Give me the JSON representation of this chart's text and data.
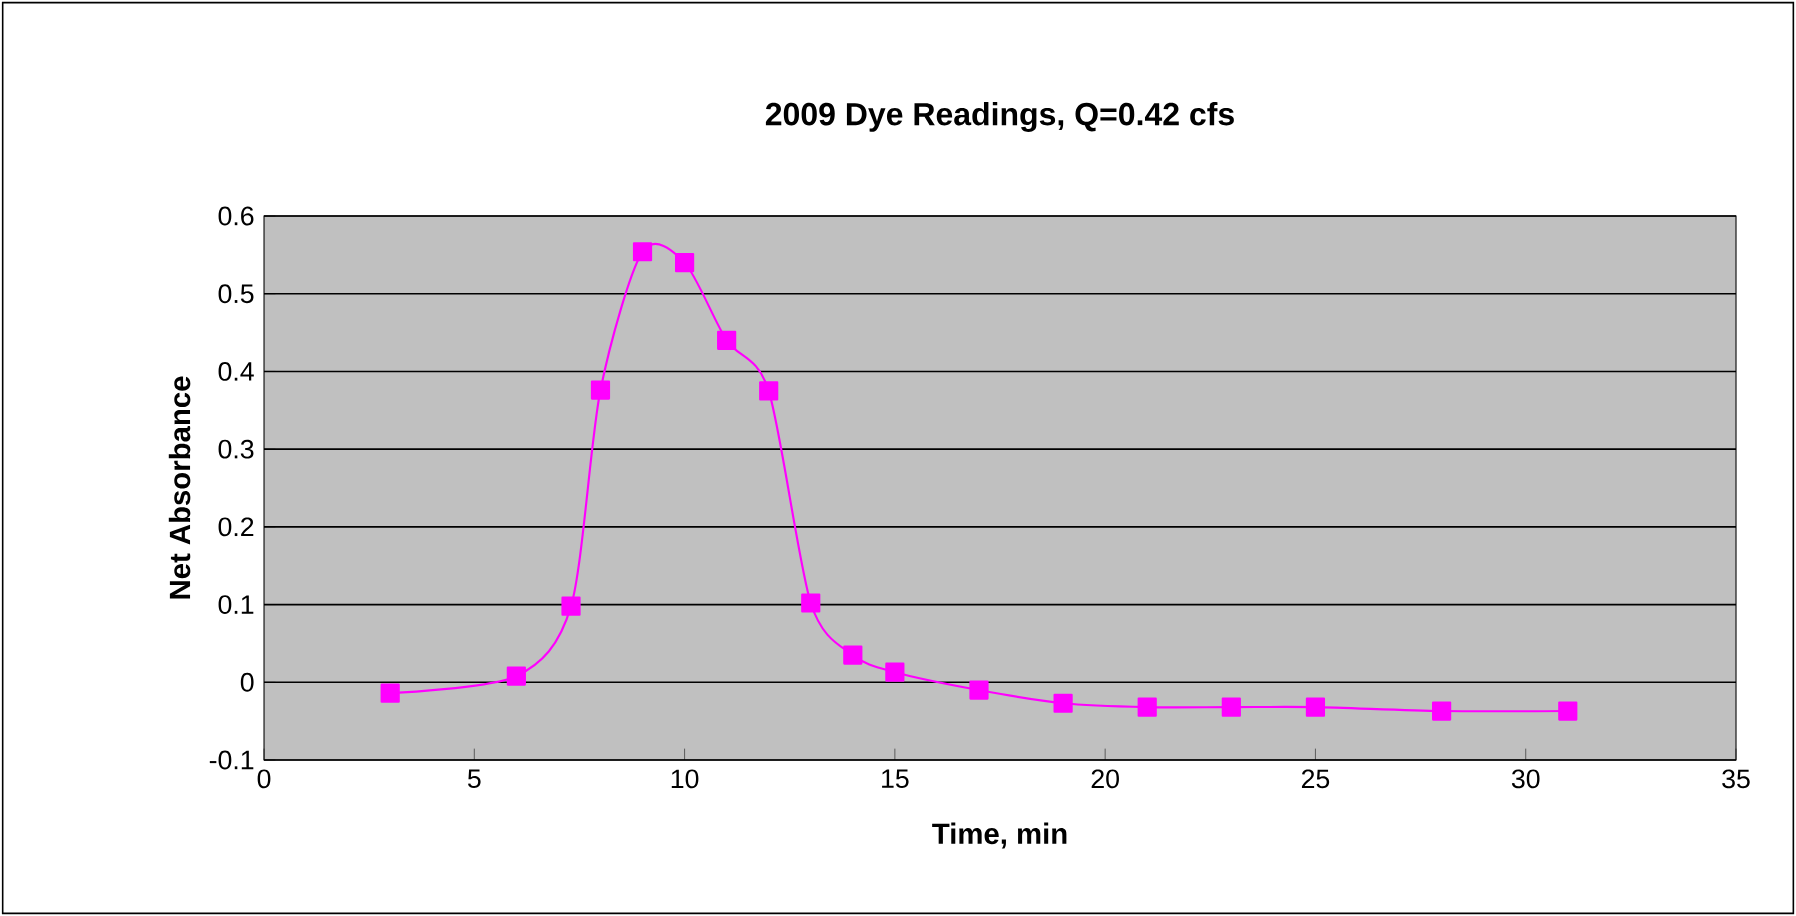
{
  "chart_data": {
    "type": "line",
    "title": "2009 Dye Readings, Q=0.42 cfs",
    "xlabel": "Time, min",
    "ylabel": "Net Absorbance",
    "x": [
      3,
      6,
      7.3,
      8,
      9,
      10,
      11,
      12,
      13,
      14,
      15,
      17,
      19,
      21,
      23,
      25,
      28,
      31
    ],
    "series": [
      {
        "color": "#ff00ff",
        "values": [
          -0.014,
          0.008,
          0.098,
          0.376,
          0.554,
          0.54,
          0.44,
          0.375,
          0.102,
          0.035,
          0.013,
          -0.01,
          -0.027,
          -0.032,
          -0.032,
          -0.032,
          -0.037,
          -0.037
        ]
      }
    ],
    "xlim": [
      0,
      35
    ],
    "ylim": [
      -0.1,
      0.6
    ],
    "xticks": [
      0,
      5,
      10,
      15,
      20,
      25,
      30,
      35
    ],
    "yticks": [
      -0.1,
      0,
      0.1,
      0.2,
      0.3,
      0.4,
      0.5,
      0.6
    ],
    "grid": "y",
    "marker": "square",
    "line_style": "solid"
  }
}
